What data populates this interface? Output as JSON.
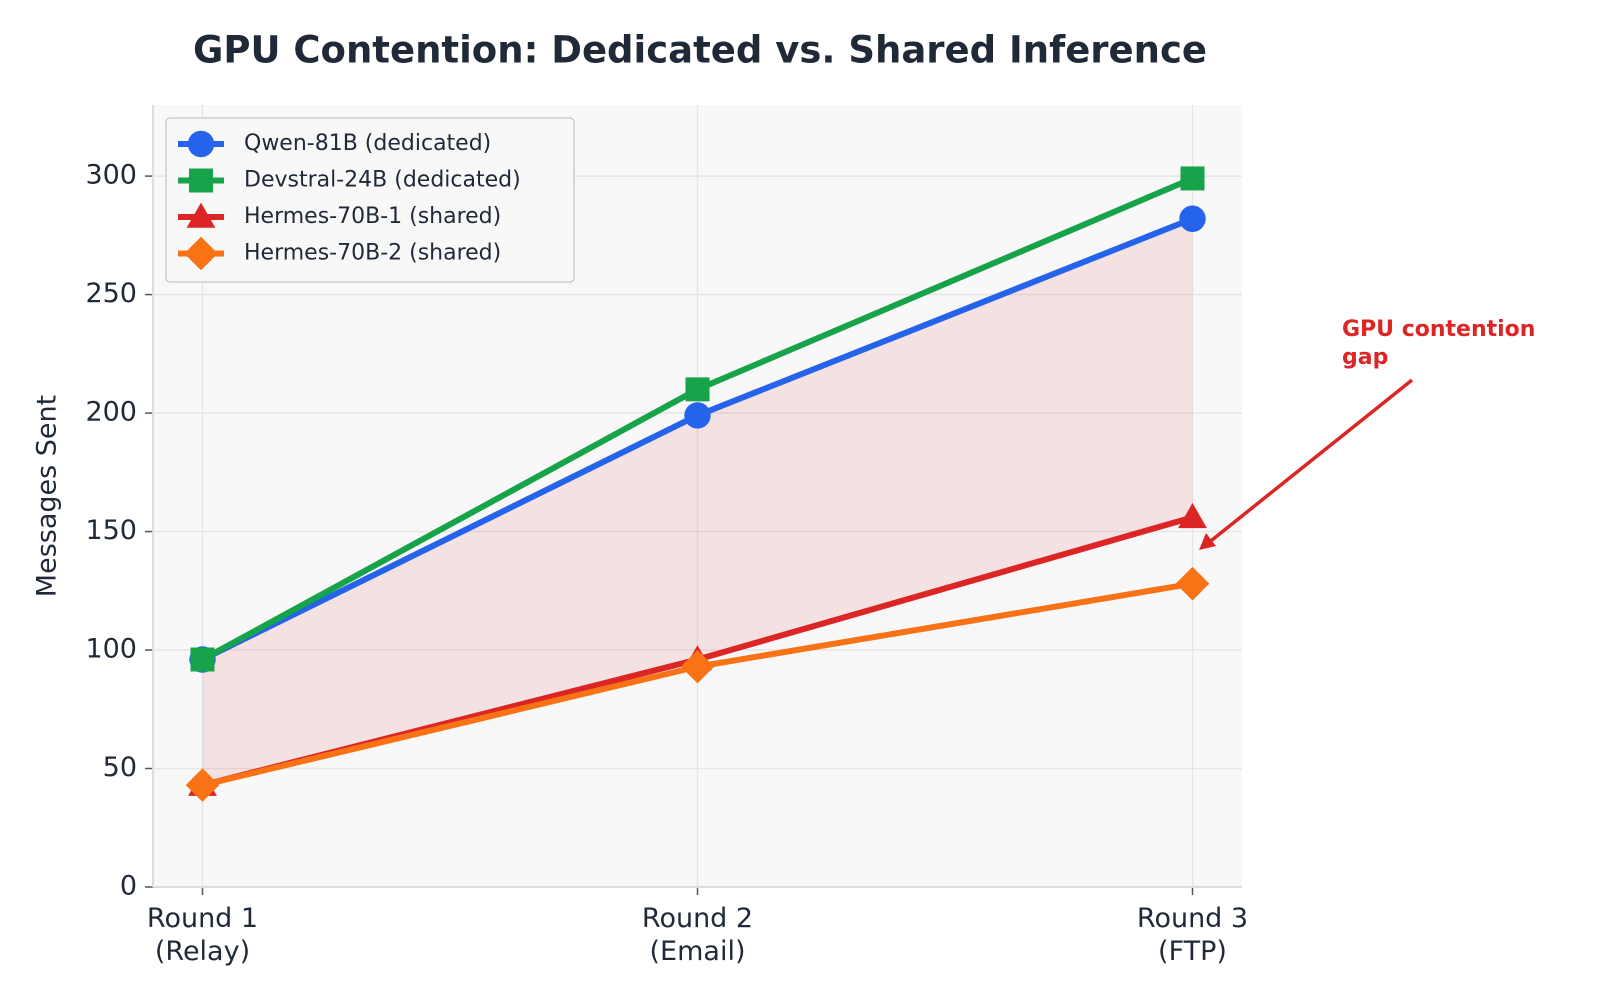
{
  "chart_data": {
    "type": "line",
    "title": "GPU Contention: Dedicated vs. Shared Inference",
    "y_label": "Messages Sent",
    "categories": [
      "Round 1\n(Relay)",
      "Round 2\n(Email)",
      "Round 3\n(FTP)"
    ],
    "series": [
      {
        "name": "Qwen-81B (dedicated)",
        "color": "#2563eb",
        "marker": "circle",
        "values": [
          96,
          199,
          282
        ]
      },
      {
        "name": "Devstral-24B (dedicated)",
        "color": "#16a34a",
        "marker": "square",
        "values": [
          96,
          210,
          299
        ]
      },
      {
        "name": "Hermes-70B-1 (shared)",
        "color": "#dc2626",
        "marker": "triangle",
        "values": [
          43,
          96,
          156
        ]
      },
      {
        "name": "Hermes-70B-2 (shared)",
        "color": "#f97316",
        "marker": "diamond",
        "values": [
          43,
          93,
          128
        ]
      }
    ],
    "fill_between": {
      "series": [
        0,
        2
      ],
      "color": "#dc2626"
    },
    "ylim": [
      0,
      330
    ],
    "yticks": [
      0,
      50,
      100,
      150,
      200,
      250,
      300
    ],
    "grid": true,
    "legend": "upper-left",
    "annotation": {
      "text": "GPU contention gap",
      "color": "#dc2626"
    }
  }
}
